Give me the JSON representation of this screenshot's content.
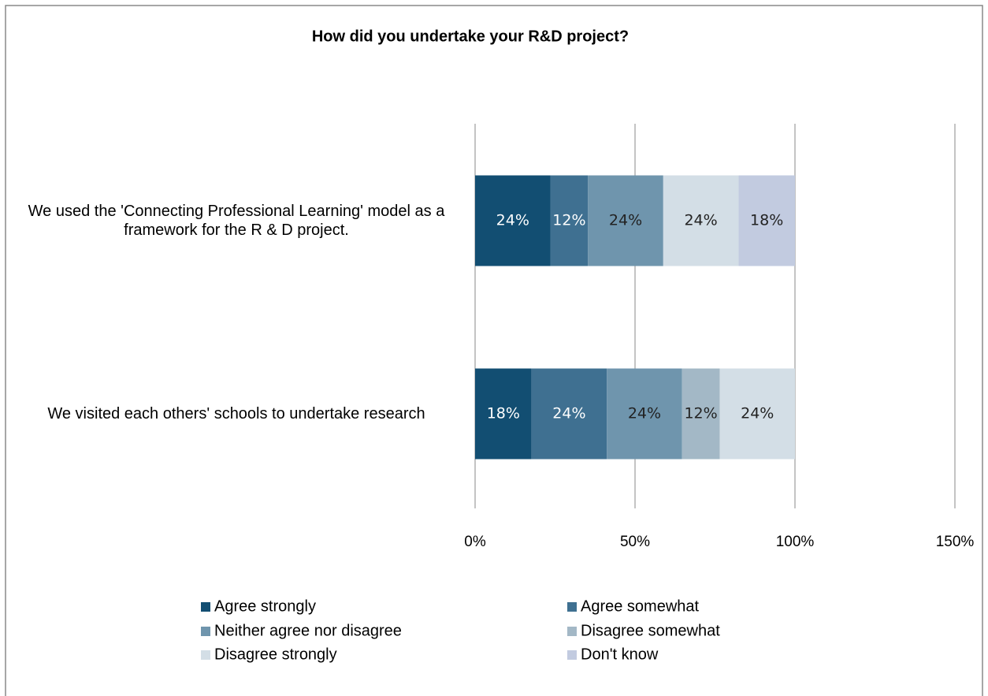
{
  "chart_data": {
    "type": "stacked_barh",
    "title": "How did you undertake your R&D project?",
    "categories": [
      "We used the 'Connecting Professional Learning' model as a framework for the R & D project.",
      "We visited each others' schools to undertake research"
    ],
    "series": [
      {
        "name": "Agree strongly",
        "color": "#124e72",
        "values": [
          23.53,
          17.65
        ],
        "value_labels": [
          "24%",
          "18%"
        ]
      },
      {
        "name": "Agree somewhat",
        "color": "#3f7091",
        "values": [
          11.76,
          23.53
        ],
        "value_labels": [
          "12%",
          "24%"
        ]
      },
      {
        "name": "Neither agree nor disagree",
        "color": "#6f95ad",
        "values": [
          23.53,
          23.53
        ],
        "value_labels": [
          "24%",
          "24%"
        ]
      },
      {
        "name": "Disagree somewhat",
        "color": "#a3b8c6",
        "values": [
          null,
          11.76
        ],
        "value_labels": [
          null,
          "12%"
        ]
      },
      {
        "name": "Disagree strongly",
        "color": "#d3dee6",
        "values": [
          23.53,
          23.53
        ],
        "value_labels": [
          "24%",
          "24%"
        ]
      },
      {
        "name": "Don't know",
        "color": "#c2cbe0",
        "values": [
          17.65,
          null
        ],
        "value_labels": [
          "18%",
          null
        ]
      }
    ],
    "xlim": [
      0,
      150
    ],
    "xticks": [
      {
        "value": 0,
        "label": "0%"
      },
      {
        "value": 50,
        "label": "50%"
      },
      {
        "value": 100,
        "label": "100%"
      },
      {
        "value": 150,
        "label": "150%"
      }
    ],
    "grid": true,
    "legend": "bottom"
  }
}
